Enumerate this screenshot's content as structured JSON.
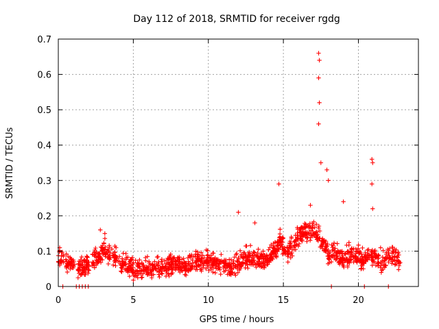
{
  "chart_data": {
    "type": "scatter",
    "title": "Day 112 of 2018, SRMTID for receiver rgdg",
    "xlabel": "GPS time / hours",
    "ylabel": "SRMTID / TECUs",
    "xlim": [
      0,
      24
    ],
    "ylim": [
      0,
      0.7
    ],
    "xticks": [
      0,
      5,
      10,
      15,
      20
    ],
    "xtick_labels": [
      "0",
      "5",
      "10",
      "15",
      "20"
    ],
    "yticks": [
      0,
      0.1,
      0.2,
      0.3,
      0.4,
      0.5,
      0.6,
      0.7
    ],
    "ytick_labels": [
      "0",
      "0.1",
      "0.2",
      "0.3",
      "0.4",
      "0.5",
      "0.6",
      "0.7"
    ],
    "grid": true,
    "marker": "+",
    "series": [
      {
        "name": "SRMTID",
        "color": "#ff0000",
        "trend": {
          "x": [
            0.0,
            0.3,
            0.6,
            1.0,
            1.4,
            1.8,
            2.2,
            2.6,
            3.0,
            3.4,
            3.8,
            4.2,
            4.6,
            5.0,
            5.5,
            6.0,
            6.5,
            7.0,
            7.5,
            8.0,
            8.5,
            9.0,
            9.5,
            10.0,
            10.5,
            11.0,
            11.5,
            12.0,
            12.5,
            13.0,
            13.5,
            14.0,
            14.4,
            14.8,
            15.2,
            15.6,
            16.0,
            16.4,
            16.8,
            17.2,
            17.6,
            18.0,
            18.4,
            18.8,
            19.2,
            19.6,
            20.0,
            20.4,
            20.8,
            21.2,
            21.6,
            22.0,
            22.4,
            22.8
          ],
          "y": [
            0.07,
            0.08,
            0.06,
            0.07,
            0.05,
            0.06,
            0.07,
            0.08,
            0.1,
            0.09,
            0.08,
            0.07,
            0.06,
            0.05,
            0.05,
            0.05,
            0.05,
            0.05,
            0.06,
            0.06,
            0.05,
            0.07,
            0.07,
            0.07,
            0.06,
            0.06,
            0.05,
            0.06,
            0.08,
            0.08,
            0.07,
            0.08,
            0.1,
            0.13,
            0.09,
            0.11,
            0.14,
            0.15,
            0.16,
            0.15,
            0.13,
            0.09,
            0.09,
            0.08,
            0.08,
            0.09,
            0.08,
            0.07,
            0.09,
            0.08,
            0.06,
            0.09,
            0.08,
            0.07
          ]
        },
        "spread": 0.035,
        "samples": 1500,
        "x_gaps": [
          [
            0.35,
            0.5
          ],
          [
            1.1,
            1.3
          ],
          [
            2.05,
            2.25
          ],
          [
            22.8,
            24.0
          ]
        ],
        "peaks": [
          {
            "x": 14.7,
            "y": 0.29
          },
          {
            "x": 16.8,
            "y": 0.23
          },
          {
            "x": 17.35,
            "y": 0.66
          },
          {
            "x": 17.4,
            "y": 0.64
          },
          {
            "x": 17.35,
            "y": 0.59
          },
          {
            "x": 17.4,
            "y": 0.52
          },
          {
            "x": 17.35,
            "y": 0.46
          },
          {
            "x": 17.5,
            "y": 0.35
          },
          {
            "x": 17.9,
            "y": 0.33
          },
          {
            "x": 18.0,
            "y": 0.3
          },
          {
            "x": 19.0,
            "y": 0.24
          },
          {
            "x": 20.9,
            "y": 0.36
          },
          {
            "x": 20.95,
            "y": 0.35
          },
          {
            "x": 20.9,
            "y": 0.29
          },
          {
            "x": 20.95,
            "y": 0.22
          },
          {
            "x": 12.0,
            "y": 0.21
          },
          {
            "x": 13.1,
            "y": 0.18
          },
          {
            "x": 2.8,
            "y": 0.16
          },
          {
            "x": 3.1,
            "y": 0.15
          }
        ],
        "zero_points_x": [
          0.3,
          1.2,
          1.4,
          1.6,
          1.8,
          2.0,
          18.2,
          20.4,
          22.0
        ]
      }
    ]
  }
}
